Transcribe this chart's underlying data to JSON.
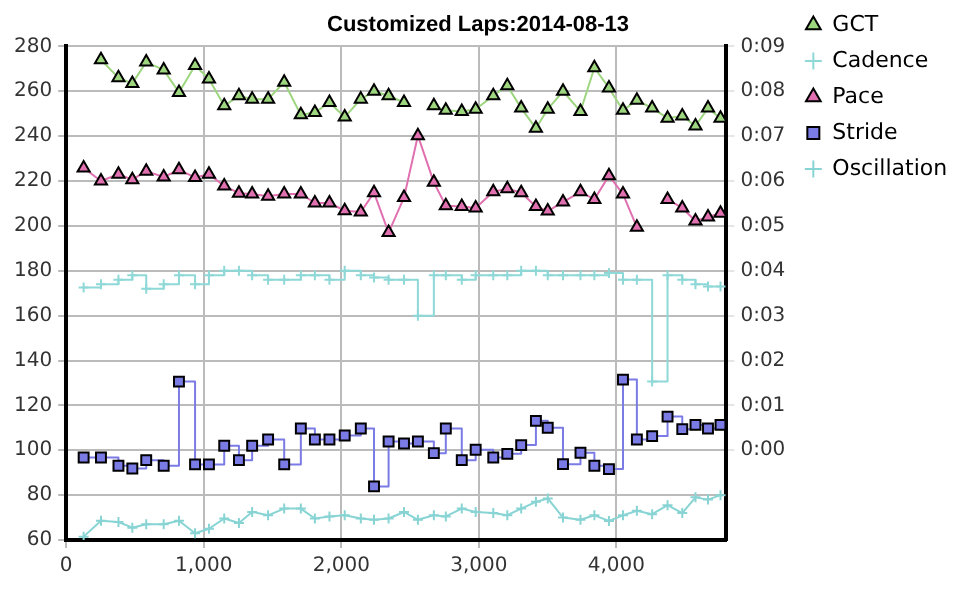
{
  "chart_data": {
    "type": "line",
    "title": "Customized Laps:2014-08-13",
    "x": [
      127,
      253,
      380,
      481,
      582,
      709,
      820,
      937,
      1038,
      1149,
      1256,
      1352,
      1468,
      1585,
      1706,
      1808,
      1914,
      2025,
      2142,
      2238,
      2344,
      2456,
      2557,
      2673,
      2760,
      2876,
      2977,
      3105,
      3207,
      3308,
      3415,
      3501,
      3612,
      3739,
      3840,
      3946,
      4048,
      4149,
      4260,
      4372,
      4479,
      4575,
      4666,
      4757
    ],
    "series": [
      {
        "name": "GCT",
        "color": "#9dd67f",
        "marker": "triangle",
        "values": [
          null,
          274,
          266,
          263.5,
          273,
          269.5,
          259.5,
          271.5,
          265.5,
          253.5,
          258,
          256.5,
          256.5,
          264,
          249.5,
          250.5,
          255,
          248.5,
          256.5,
          260,
          258,
          255,
          null,
          253.5,
          251.5,
          251,
          252,
          258,
          262.5,
          252.5,
          243.5,
          252,
          260,
          251,
          270.5,
          261.5,
          251.5,
          256,
          252.5,
          248,
          249,
          244.5,
          252.5,
          248
        ]
      },
      {
        "name": "Cadence",
        "type": "step",
        "color": "#8fd8d8",
        "marker": "cross",
        "values": [
          172.5,
          174,
          176,
          178,
          172,
          174,
          178,
          174,
          178,
          180,
          180,
          178,
          176,
          176,
          178,
          178,
          176,
          180,
          178,
          177,
          176,
          176,
          160,
          178,
          178,
          176,
          178,
          178,
          178,
          180,
          180,
          178,
          178,
          178,
          178,
          179,
          176,
          176,
          130.6,
          178,
          176,
          174,
          173,
          173
        ]
      },
      {
        "name": "Pace",
        "color": "#e070b0",
        "marker": "triangle",
        "axis": "y2",
        "values": [
          6.29,
          6.0,
          6.15,
          6.03,
          6.22,
          6.09,
          6.25,
          6.08,
          6.15,
          5.89,
          5.73,
          5.71,
          5.66,
          5.71,
          5.71,
          5.51,
          5.51,
          5.34,
          5.31,
          5.74,
          4.85,
          5.63,
          7.01,
          5.97,
          5.45,
          5.43,
          5.4,
          5.76,
          5.83,
          5.74,
          5.43,
          5.33,
          5.53,
          5.76,
          5.59,
          6.12,
          5.71,
          4.97,
          null,
          5.59,
          5.4,
          5.11,
          5.2,
          5.28
        ]
      },
      {
        "name": "Stride",
        "type": "step",
        "color": "#7b7be6",
        "marker": "square",
        "values": [
          96.8,
          96.8,
          93.1,
          91.9,
          95.6,
          93.1,
          130.6,
          93.7,
          93.7,
          102,
          95.6,
          102,
          104.8,
          93.7,
          109.7,
          104.8,
          104.8,
          106.6,
          109.7,
          83.9,
          103.9,
          103,
          103.9,
          98.7,
          109.7,
          95.6,
          100.2,
          96.8,
          98.4,
          102.3,
          113.1,
          110,
          93.8,
          98.9,
          93.1,
          91.6,
          131.5,
          104.8,
          106.3,
          115,
          109.4,
          111.3,
          109.7,
          111.3
        ]
      },
      {
        "name": "Oscillation",
        "color": "#88d4d4",
        "marker": "cross",
        "values": [
          61.5,
          68.6,
          68,
          65.5,
          67,
          67,
          68.6,
          63,
          65,
          69.6,
          67.6,
          72.5,
          71,
          74,
          74,
          69.6,
          70.5,
          71,
          69.6,
          69,
          69.6,
          72.5,
          69,
          71,
          70.5,
          74,
          72.5,
          72,
          71,
          74,
          77,
          78.5,
          70,
          69,
          71,
          68.5,
          71,
          73,
          71.5,
          75.5,
          72,
          79,
          78,
          80
        ]
      }
    ],
    "xlim": [
      0,
      4800
    ],
    "xticks": [
      {
        "value": 0,
        "label": "0"
      },
      {
        "value": 1000,
        "label": "1,000"
      },
      {
        "value": 2000,
        "label": "2,000"
      },
      {
        "value": 3000,
        "label": "3,000"
      },
      {
        "value": 4000,
        "label": "4,000"
      }
    ],
    "ylim": [
      60,
      280
    ],
    "yticks": [
      60,
      80,
      100,
      120,
      140,
      160,
      180,
      200,
      220,
      240,
      260,
      280
    ],
    "y2lim": [
      -2,
      9
    ],
    "y2ticks": [
      {
        "value": 0,
        "label": "0:00"
      },
      {
        "value": 1,
        "label": "0:01"
      },
      {
        "value": 2,
        "label": "0:02"
      },
      {
        "value": 3,
        "label": "0:03"
      },
      {
        "value": 4,
        "label": "0:04"
      },
      {
        "value": 5,
        "label": "0:05"
      },
      {
        "value": 6,
        "label": "0:06"
      },
      {
        "value": 7,
        "label": "0:07"
      },
      {
        "value": 8,
        "label": "0:08"
      },
      {
        "value": 9,
        "label": "0:09"
      }
    ],
    "grid": true,
    "legend": "top right"
  }
}
